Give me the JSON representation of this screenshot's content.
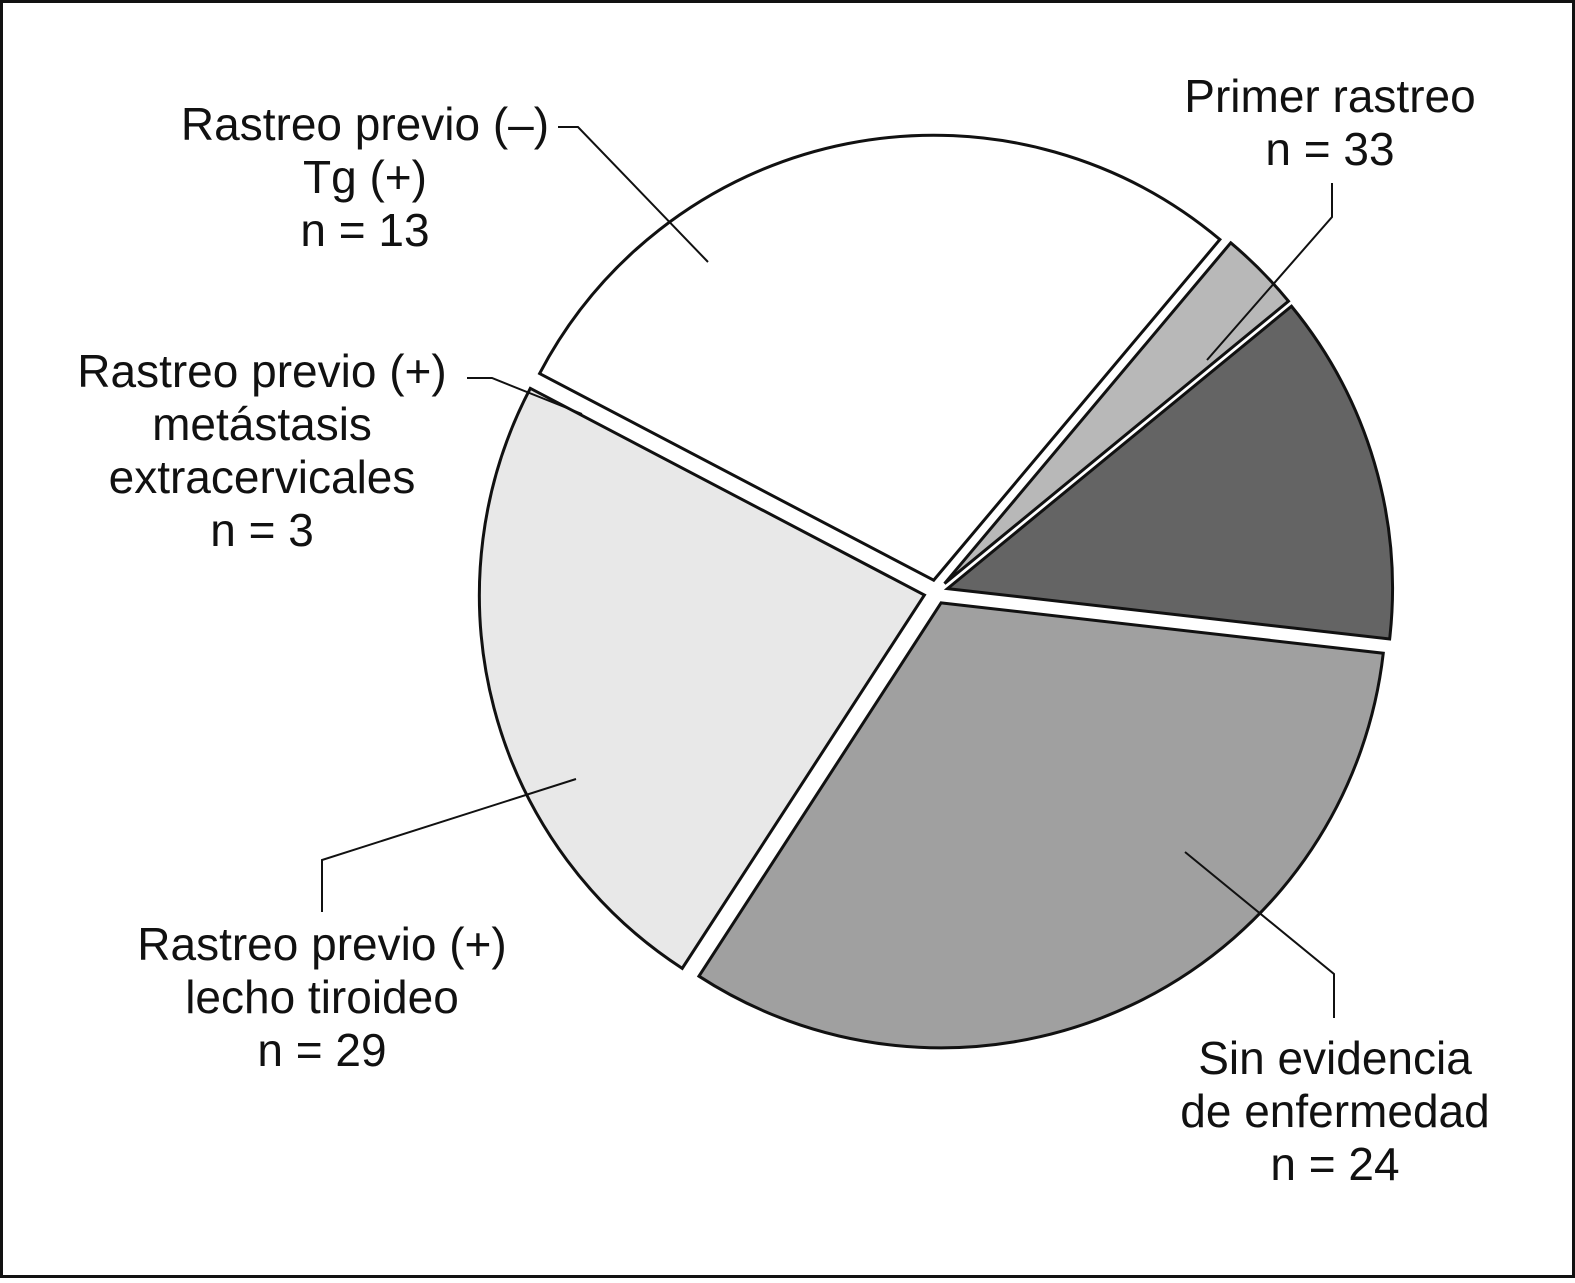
{
  "chart_data": {
    "type": "pie",
    "title": "",
    "direction": "clockwise",
    "exploded": true,
    "slices": [
      {
        "label_lines": [
          "Primer rastreo",
          "n = 33"
        ],
        "value": 33,
        "color": "#a0a0a0"
      },
      {
        "label_lines": [
          "Sin evidencia",
          "de enfermedad",
          "n = 24"
        ],
        "value": 24,
        "color": "#e8e8e8"
      },
      {
        "label_lines": [
          "Rastreo previo (+)",
          "lecho tiroideo",
          "n = 29"
        ],
        "value": 29,
        "color": "#ffffff"
      },
      {
        "label_lines": [
          "Rastreo previo (+)",
          "metástasis",
          "extracervicales",
          "n = 3"
        ],
        "value": 3,
        "color": "#b8b8b8"
      },
      {
        "label_lines": [
          "Rastreo previo (–)",
          "Tg (+)",
          "n = 13"
        ],
        "value": 13,
        "color": "#646464"
      }
    ]
  }
}
